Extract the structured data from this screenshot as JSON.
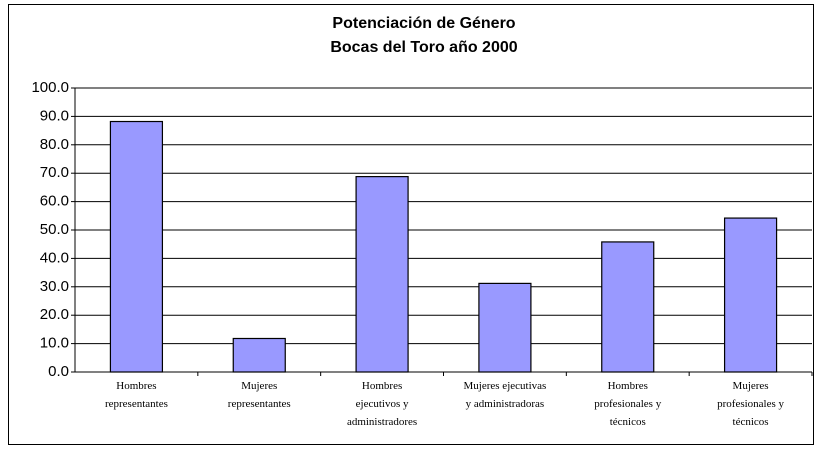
{
  "chart_data": {
    "type": "bar",
    "title": "Potenciación de Género",
    "subtitle": "Bocas del Toro año 2000",
    "categories": [
      [
        "Hombres",
        "representantes"
      ],
      [
        "Mujeres",
        "representantes"
      ],
      [
        "Hombres",
        "ejecutivos y",
        "administradores"
      ],
      [
        "Mujeres ejecutivas",
        "y administradoras"
      ],
      [
        "Hombres",
        "profesionales y",
        "técnicos"
      ],
      [
        "Mujeres",
        "profesionales y",
        "técnicos"
      ]
    ],
    "values": [
      88.2,
      11.8,
      68.8,
      31.2,
      45.8,
      54.2
    ],
    "color": "#9999ff",
    "ylim": [
      0,
      100
    ],
    "yticks": [
      {
        "value": 0,
        "label": "0.0"
      },
      {
        "value": 10,
        "label": "10.0"
      },
      {
        "value": 20,
        "label": "20.0"
      },
      {
        "value": 30,
        "label": "30.0"
      },
      {
        "value": 40,
        "label": "40.0"
      },
      {
        "value": 50,
        "label": "50.0"
      },
      {
        "value": 60,
        "label": "60.0"
      },
      {
        "value": 70,
        "label": "70.0"
      },
      {
        "value": 80,
        "label": "80.0"
      },
      {
        "value": 90,
        "label": "90.0"
      },
      {
        "value": 100,
        "label": "100.0"
      }
    ],
    "grid": true
  }
}
